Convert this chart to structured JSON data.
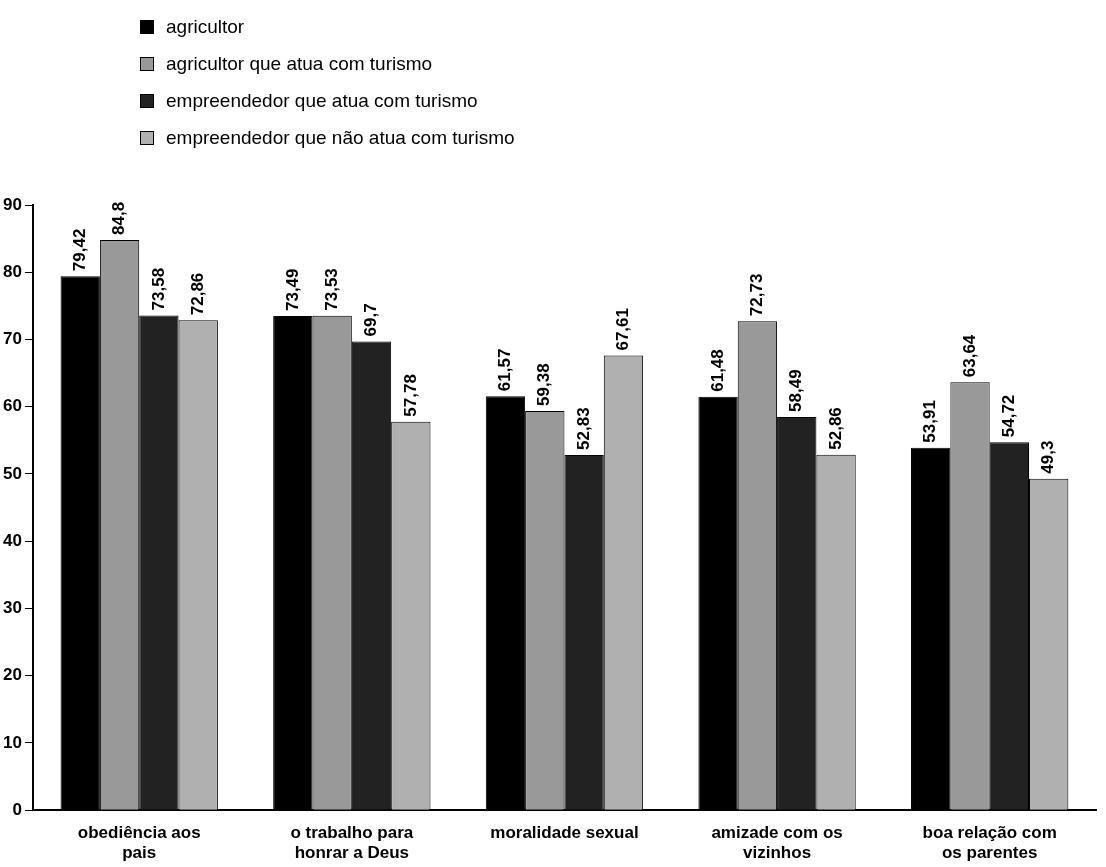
{
  "chart_data": {
    "type": "bar",
    "categories": [
      "obediência aos pais",
      "o trabalho para honrar a Deus",
      "moralidade sexual",
      "amizade com os vizinhos",
      "boa relação com os parentes"
    ],
    "series": [
      {
        "name": "agricultor",
        "color": "#000000",
        "values": [
          79.42,
          73.49,
          61.57,
          61.48,
          53.91
        ],
        "value_labels": [
          "79,42",
          "73,49",
          "61,57",
          "61,48",
          "53,91"
        ]
      },
      {
        "name": "agricultor que atua com turismo",
        "color": "#999999",
        "values": [
          84.8,
          73.53,
          59.38,
          72.73,
          63.64
        ],
        "value_labels": [
          "84,8",
          "73,53",
          "59,38",
          "72,73",
          "63,64"
        ]
      },
      {
        "name": "empreendedor que atua com turismo",
        "color": "#222222",
        "values": [
          73.58,
          69.7,
          52.83,
          58.49,
          54.72
        ],
        "value_labels": [
          "73,58",
          "69,7",
          "52,83",
          "58,49",
          "54,72"
        ]
      },
      {
        "name": "empreendedor que não atua com turismo",
        "color": "#b0b0b0",
        "values": [
          72.86,
          57.78,
          67.61,
          52.86,
          49.3
        ],
        "value_labels": [
          "72,86",
          "57,78",
          "67,61",
          "52,86",
          "49,3"
        ]
      }
    ],
    "ylim": [
      0,
      90
    ],
    "yticks": [
      0,
      10,
      20,
      30,
      40,
      50,
      60,
      70,
      80,
      90
    ],
    "grid": false,
    "legend": "top"
  }
}
